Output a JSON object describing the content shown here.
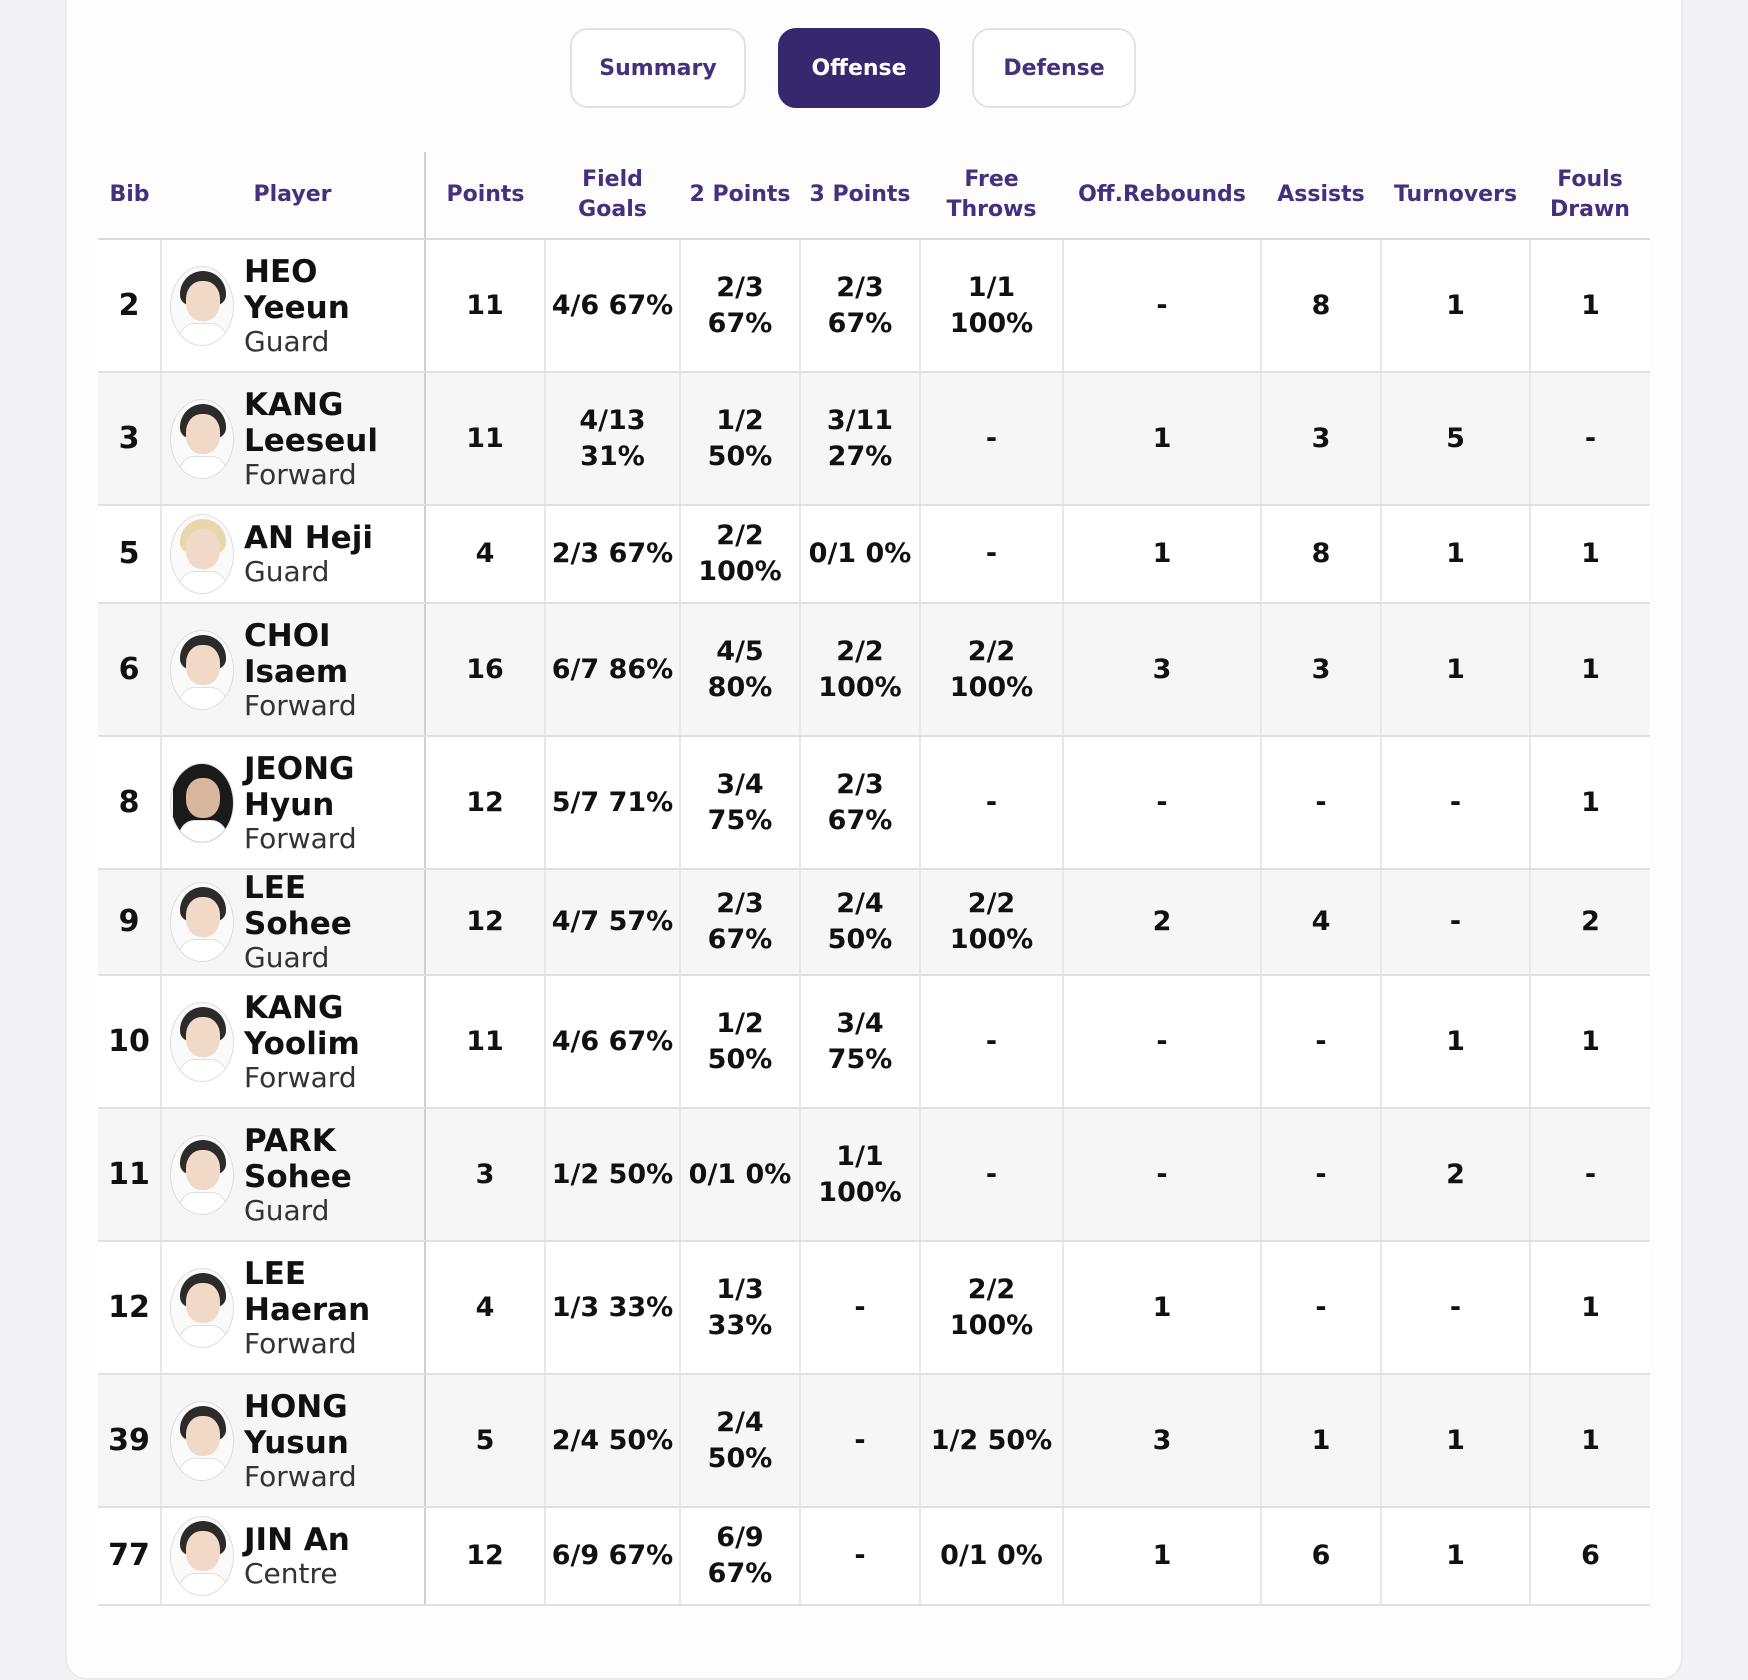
{
  "tabs": [
    "Summary",
    "Offense",
    "Defense"
  ],
  "active_tab": "Offense",
  "headers": {
    "bib": "Bib",
    "player": "Player",
    "points": "Points",
    "field_goals": "Field Goals",
    "two_points": "2 Points",
    "three_points": "3 Points",
    "free_throws": "Free Throws",
    "off_rebounds": "Off.Rebounds",
    "assists": "Assists",
    "turnovers": "Turnovers",
    "fouls_drawn": "Fouls Drawn"
  },
  "rows": [
    {
      "bib": "2",
      "name": "HEO Yeeun",
      "position": "Guard",
      "points": "11",
      "fg": "4/6 67%",
      "two": "2/3 67%",
      "three": "2/3 67%",
      "ft": "1/1 100%",
      "oreb": "-",
      "ast": "8",
      "to": "1",
      "fd": "1"
    },
    {
      "bib": "3",
      "name": "KANG Leeseul",
      "position": "Forward",
      "points": "11",
      "fg": "4/13 31%",
      "two": "1/2 50%",
      "three": "3/11 27%",
      "ft": "-",
      "oreb": "1",
      "ast": "3",
      "to": "5",
      "fd": "-"
    },
    {
      "bib": "5",
      "name": "AN Heji",
      "position": "Guard",
      "points": "4",
      "fg": "2/3 67%",
      "two": "2/2 100%",
      "three": "0/1 0%",
      "ft": "-",
      "oreb": "1",
      "ast": "8",
      "to": "1",
      "fd": "1"
    },
    {
      "bib": "6",
      "name": "CHOI Isaem",
      "position": "Forward",
      "points": "16",
      "fg": "6/7 86%",
      "two": "4/5 80%",
      "three": "2/2 100%",
      "ft": "2/2 100%",
      "oreb": "3",
      "ast": "3",
      "to": "1",
      "fd": "1"
    },
    {
      "bib": "8",
      "name": "JEONG Hyun",
      "position": "Forward",
      "points": "12",
      "fg": "5/7 71%",
      "two": "3/4 75%",
      "three": "2/3 67%",
      "ft": "-",
      "oreb": "-",
      "ast": "-",
      "to": "-",
      "fd": "1"
    },
    {
      "bib": "9",
      "name": "LEE Sohee",
      "position": "Guard",
      "points": "12",
      "fg": "4/7 57%",
      "two": "2/3 67%",
      "three": "2/4 50%",
      "ft": "2/2 100%",
      "oreb": "2",
      "ast": "4",
      "to": "-",
      "fd": "2"
    },
    {
      "bib": "10",
      "name": "KANG Yoolim",
      "position": "Forward",
      "points": "11",
      "fg": "4/6 67%",
      "two": "1/2 50%",
      "three": "3/4 75%",
      "ft": "-",
      "oreb": "-",
      "ast": "-",
      "to": "1",
      "fd": "1"
    },
    {
      "bib": "11",
      "name": "PARK Sohee",
      "position": "Guard",
      "points": "3",
      "fg": "1/2 50%",
      "two": "0/1 0%",
      "three": "1/1 100%",
      "ft": "-",
      "oreb": "-",
      "ast": "-",
      "to": "2",
      "fd": "-"
    },
    {
      "bib": "12",
      "name": "LEE Haeran",
      "position": "Forward",
      "points": "4",
      "fg": "1/3 33%",
      "two": "1/3 33%",
      "three": "-",
      "ft": "2/2 100%",
      "oreb": "1",
      "ast": "-",
      "to": "-",
      "fd": "1"
    },
    {
      "bib": "39",
      "name": "HONG Yusun",
      "position": "Forward",
      "points": "5",
      "fg": "2/4 50%",
      "two": "2/4 50%",
      "three": "-",
      "ft": "1/2 50%",
      "oreb": "3",
      "ast": "1",
      "to": "1",
      "fd": "1"
    },
    {
      "bib": "77",
      "name": "JIN An",
      "position": "Centre",
      "points": "12",
      "fg": "6/9 67%",
      "two": "6/9 67%",
      "three": "-",
      "ft": "0/1 0%",
      "oreb": "1",
      "ast": "6",
      "to": "1",
      "fd": "6"
    }
  ],
  "colors": {
    "accent": "#36286e",
    "header_text": "#45307e"
  }
}
